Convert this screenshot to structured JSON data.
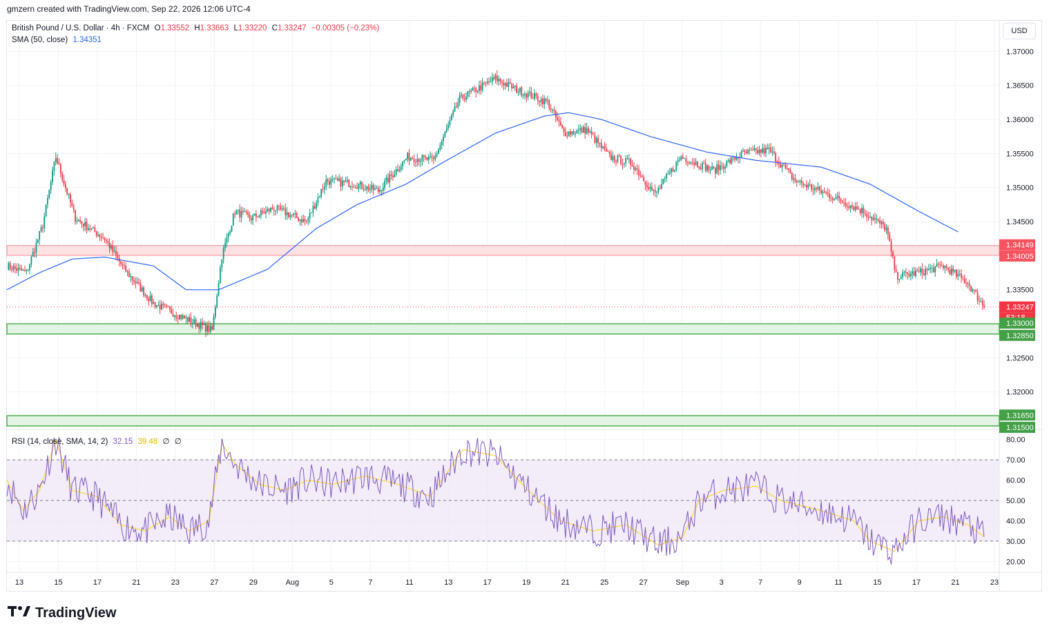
{
  "header": {
    "attribution": "gmzern created with TradingView.com, Sep 22, 2026 12:06 UTC-4"
  },
  "legend": {
    "symbol": "British Pound / U.S. Dollar · 4h · FXCM",
    "open_label": "O",
    "open": "1.33552",
    "high_label": "H",
    "high": "1.33663",
    "low_label": "L",
    "low": "1.33220",
    "close_label": "C",
    "close": "1.33247",
    "change": "−0.00305 (−0.23%)",
    "sma_label": "SMA (50, close)",
    "sma_value": "1.34351",
    "rsi_label": "RSI (14, close, SMA, 14, 2)",
    "rsi_value": "32.15",
    "rsi_ma_value": "39.48",
    "rsi_extra1": "∅",
    "rsi_extra2": "∅"
  },
  "currency": "USD",
  "brand": "TradingView",
  "colors": {
    "up": "#089981",
    "down": "#f23645",
    "sma": "#2962ff",
    "rsi": "#7e57c2",
    "rsi_ma": "#fdd835",
    "resistance_fill": "#fde2e4",
    "support_fill": "#e3f4e4",
    "support_line": "#4caf50"
  },
  "chart_data": [
    {
      "type": "candlestick",
      "title": "British Pound / U.S. Dollar · 4h · FXCM",
      "y_range": [
        1.3145,
        1.3745
      ],
      "y_ticks": [
        "1.37000",
        "1.36500",
        "1.36000",
        "1.35500",
        "1.35000",
        "1.34500",
        "1.33500",
        "1.32500",
        "1.32000"
      ],
      "x_ticks": [
        "13",
        "15",
        "17",
        "21",
        "23",
        "27",
        "29",
        "Aug",
        "5",
        "7",
        "11",
        "13",
        "17",
        "19",
        "21",
        "25",
        "27",
        "Sep",
        "3",
        "7",
        "9",
        "11",
        "15",
        "17",
        "21",
        "23"
      ],
      "price_anchors": [
        [
          0,
          1.3385
        ],
        [
          12,
          1.3375
        ],
        [
          22,
          1.3445
        ],
        [
          30,
          1.3545
        ],
        [
          42,
          1.3455
        ],
        [
          60,
          1.3425
        ],
        [
          72,
          1.338
        ],
        [
          90,
          1.333
        ],
        [
          112,
          1.3305
        ],
        [
          126,
          1.329
        ],
        [
          132,
          1.34
        ],
        [
          140,
          1.3465
        ],
        [
          150,
          1.3455
        ],
        [
          164,
          1.347
        ],
        [
          184,
          1.345
        ],
        [
          196,
          1.351
        ],
        [
          214,
          1.3505
        ],
        [
          228,
          1.3495
        ],
        [
          246,
          1.3545
        ],
        [
          262,
          1.354
        ],
        [
          278,
          1.363
        ],
        [
          300,
          1.366
        ],
        [
          312,
          1.3645
        ],
        [
          332,
          1.3625
        ],
        [
          342,
          1.358
        ],
        [
          356,
          1.3585
        ],
        [
          370,
          1.3545
        ],
        [
          384,
          1.3535
        ],
        [
          398,
          1.349
        ],
        [
          414,
          1.3545
        ],
        [
          434,
          1.3525
        ],
        [
          452,
          1.355
        ],
        [
          468,
          1.3555
        ],
        [
          484,
          1.351
        ],
        [
          504,
          1.349
        ],
        [
          526,
          1.3465
        ],
        [
          540,
          1.344
        ],
        [
          546,
          1.337
        ],
        [
          560,
          1.3375
        ],
        [
          575,
          1.3385
        ],
        [
          590,
          1.336
        ],
        [
          600,
          1.3325
        ]
      ],
      "sma_anchors": [
        [
          0,
          1.335
        ],
        [
          20,
          1.3375
        ],
        [
          40,
          1.3395
        ],
        [
          60,
          1.3398
        ],
        [
          90,
          1.3385
        ],
        [
          110,
          1.335
        ],
        [
          130,
          1.335
        ],
        [
          160,
          1.338
        ],
        [
          190,
          1.344
        ],
        [
          215,
          1.3475
        ],
        [
          245,
          1.3505
        ],
        [
          270,
          1.354
        ],
        [
          300,
          1.358
        ],
        [
          330,
          1.3605
        ],
        [
          345,
          1.361
        ],
        [
          365,
          1.36
        ],
        [
          395,
          1.3575
        ],
        [
          430,
          1.3552
        ],
        [
          460,
          1.354
        ],
        [
          500,
          1.353
        ],
        [
          530,
          1.3505
        ],
        [
          560,
          1.3465
        ],
        [
          584,
          1.3435
        ]
      ],
      "sma_value": 1.34351,
      "current_price": 1.33247,
      "countdown": "53:18",
      "resistance_zone": [
        1.34005,
        1.34149
      ],
      "support_zones": [
        [
          1.3285,
          1.33
        ],
        [
          1.315,
          1.3165
        ]
      ],
      "price_labels": [
        "1.34149",
        "1.34005",
        "1.33247",
        "1.33000",
        "1.32850",
        "1.31650",
        "1.31500"
      ]
    },
    {
      "type": "line",
      "title": "RSI (14, close, SMA, 14, 2)",
      "y_range": [
        15,
        85
      ],
      "y_ticks": [
        "80.00",
        "70.00",
        "60.00",
        "50.00",
        "40.00",
        "30.00",
        "20.00"
      ],
      "bands": [
        30,
        50,
        70
      ],
      "rsi_anchors": [
        [
          0,
          60
        ],
        [
          10,
          45
        ],
        [
          20,
          55
        ],
        [
          30,
          80
        ],
        [
          40,
          55
        ],
        [
          55,
          52
        ],
        [
          70,
          38
        ],
        [
          85,
          35
        ],
        [
          100,
          42
        ],
        [
          112,
          35
        ],
        [
          124,
          40
        ],
        [
          132,
          78
        ],
        [
          140,
          68
        ],
        [
          155,
          58
        ],
        [
          170,
          55
        ],
        [
          185,
          60
        ],
        [
          200,
          58
        ],
        [
          220,
          62
        ],
        [
          240,
          58
        ],
        [
          260,
          52
        ],
        [
          280,
          75
        ],
        [
          300,
          72
        ],
        [
          320,
          55
        ],
        [
          340,
          40
        ],
        [
          360,
          35
        ],
        [
          380,
          38
        ],
        [
          400,
          28
        ],
        [
          415,
          32
        ],
        [
          425,
          50
        ],
        [
          440,
          55
        ],
        [
          460,
          57
        ],
        [
          475,
          50
        ],
        [
          500,
          45
        ],
        [
          520,
          40
        ],
        [
          530,
          30
        ],
        [
          545,
          25
        ],
        [
          560,
          40
        ],
        [
          575,
          42
        ],
        [
          590,
          38
        ],
        [
          600,
          32
        ]
      ],
      "rsi_value": 32.15,
      "rsi_ma_value": 39.48
    }
  ]
}
